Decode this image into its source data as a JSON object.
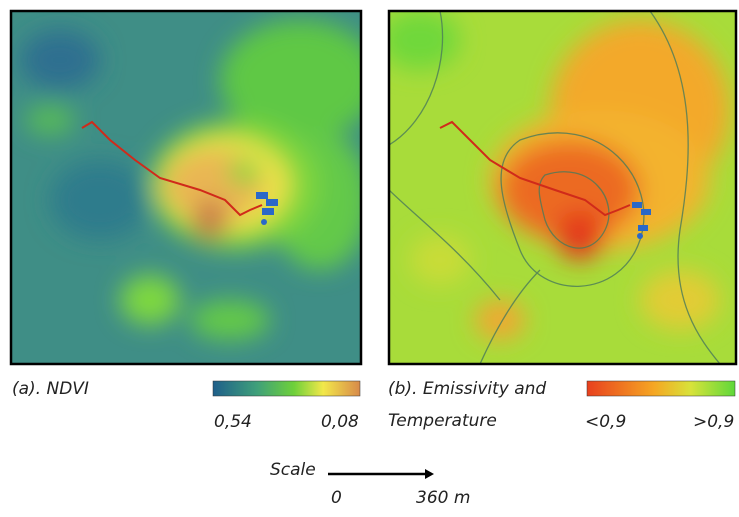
{
  "panel_a": {
    "caption": "(a). NDVI",
    "legend_left": "0,54",
    "legend_right": "0,08"
  },
  "panel_b": {
    "caption_line1": "(b). Emissivity and",
    "caption_line2": "Temperature",
    "legend_left": "<0,9",
    "legend_right": ">0,9"
  },
  "scale": {
    "label": "Scale",
    "start": "0",
    "end": "360 m"
  }
}
